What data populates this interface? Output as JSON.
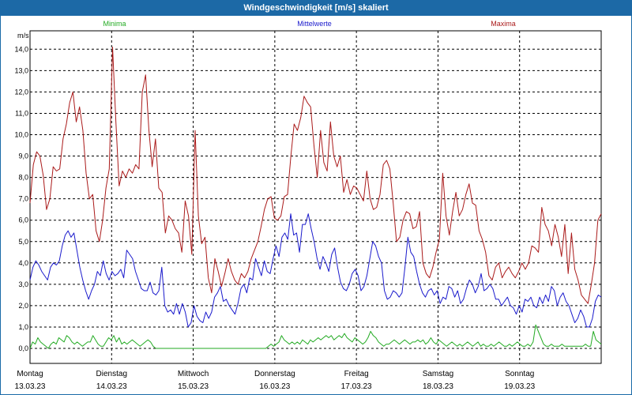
{
  "chart_data": {
    "type": "line",
    "title": "Windgeschwindigkeit [m/s] skaliert",
    "ylabel": "m/s",
    "ylim": [
      0,
      14.7
    ],
    "yticks": [
      "0,0",
      "1,0",
      "2,0",
      "3,0",
      "4,0",
      "5,0",
      "6,0",
      "7,0",
      "8,0",
      "9,0",
      "10,0",
      "11,0",
      "12,0",
      "13,0",
      "14,0"
    ],
    "xlim": [
      0,
      7
    ],
    "day_labels": [
      {
        "day": "Montag",
        "date": "13.03.23"
      },
      {
        "day": "Dienstag",
        "date": "14.03.23"
      },
      {
        "day": "Mittwoch",
        "date": "15.03.23"
      },
      {
        "day": "Donnerstag",
        "date": "16.03.23"
      },
      {
        "day": "Freitag",
        "date": "17.03.23"
      },
      {
        "day": "Samstag",
        "date": "18.03.23"
      },
      {
        "day": "Sonntag",
        "date": "19.03.23"
      }
    ],
    "legend": [
      {
        "name": "Minima",
        "color": "#22aa22"
      },
      {
        "name": "Mittelwerte",
        "color": "#1a1acc"
      },
      {
        "name": "Maxima",
        "color": "#aa1a1a"
      }
    ],
    "series": [
      {
        "name": "Minima",
        "color": "#22aa22",
        "values": [
          0.0,
          0.3,
          0.2,
          0.5,
          0.3,
          0.2,
          0.1,
          0.0,
          0.2,
          0.3,
          0.2,
          0.5,
          0.4,
          0.3,
          0.6,
          0.5,
          0.3,
          0.2,
          0.3,
          0.2,
          0.1,
          0.2,
          0.3,
          0.3,
          0.6,
          0.4,
          0.2,
          0.1,
          0.1,
          0.3,
          0.5,
          0.4,
          0.6,
          0.3,
          0.5,
          0.2,
          0.3,
          0.2,
          0.3,
          0.4,
          0.3,
          0.2,
          0.1,
          0.2,
          0.3,
          0.4,
          0.3,
          0.1,
          0.0,
          0.0,
          0.0,
          0.0,
          0.0,
          0.0,
          0.0,
          0.0,
          0.0,
          0.0,
          0.0,
          0.0,
          0.0,
          0.0,
          0.0,
          0.0,
          0.0,
          0.0,
          0.0,
          0.0,
          0.0,
          0.0,
          0.0,
          0.0,
          0.0,
          0.0,
          0.0,
          0.0,
          0.0,
          0.0,
          0.0,
          0.0,
          0.0,
          0.0,
          0.0,
          0.0,
          0.0,
          0.0,
          0.0,
          0.0,
          0.0,
          0.0,
          0.0,
          0.1,
          0.2,
          0.1,
          0.2,
          0.3,
          0.6,
          0.4,
          0.3,
          0.2,
          0.3,
          0.2,
          0.3,
          0.2,
          0.4,
          0.3,
          0.2,
          0.4,
          0.3,
          0.4,
          0.5,
          0.4,
          0.5,
          0.6,
          0.5,
          0.6,
          0.4,
          0.5,
          0.6,
          0.5,
          0.7,
          0.5,
          0.4,
          0.3,
          0.5,
          0.4,
          0.3,
          0.2,
          0.3,
          0.5,
          0.8,
          0.6,
          0.5,
          0.3,
          0.2,
          0.1,
          0.2,
          0.2,
          0.3,
          0.4,
          0.3,
          0.2,
          0.3,
          0.4,
          0.3,
          0.2,
          0.3,
          0.3,
          0.4,
          0.3,
          0.4,
          0.2,
          0.3,
          0.5,
          0.3,
          0.2,
          0.4,
          0.3,
          0.2,
          0.1,
          0.2,
          0.3,
          0.2,
          0.1,
          0.2,
          0.1,
          0.2,
          0.3,
          0.2,
          0.1,
          0.2,
          0.3,
          0.1,
          0.2,
          0.1,
          0.1,
          0.2,
          0.1,
          0.2,
          0.3,
          0.2,
          0.1,
          0.1,
          0.2,
          0.1,
          0.2,
          0.3,
          0.2,
          0.1,
          0.1,
          0.2,
          0.1,
          0.3,
          1.1,
          0.8,
          0.5,
          0.2,
          0.1,
          0.1,
          0.2,
          0.1,
          0.1,
          0.1,
          0.2,
          0.1,
          0.1,
          0.1,
          0.1,
          0.1,
          0.1,
          0.1,
          0.1,
          0.2,
          0.1,
          0.1,
          0.8,
          0.4,
          0.3,
          0.2
        ]
      },
      {
        "name": "Mittelwerte",
        "color": "#1a1acc",
        "values": [
          3.2,
          3.8,
          4.1,
          3.9,
          3.6,
          3.4,
          3.2,
          3.8,
          4.0,
          3.9,
          4.1,
          4.8,
          5.3,
          5.5,
          5.2,
          5.4,
          4.6,
          3.8,
          3.2,
          2.7,
          2.3,
          2.7,
          3.0,
          3.6,
          3.4,
          4.1,
          3.5,
          3.2,
          3.6,
          3.4,
          3.5,
          3.7,
          3.3,
          4.6,
          4.4,
          4.2,
          3.6,
          3.2,
          2.8,
          2.7,
          2.7,
          3.1,
          2.6,
          2.5,
          2.7,
          3.8,
          2.0,
          1.7,
          1.8,
          1.6,
          2.1,
          1.6,
          2.1,
          1.7,
          1.0,
          1.2,
          2.0,
          1.5,
          1.3,
          1.2,
          1.7,
          1.4,
          1.7,
          2.4,
          2.6,
          2.9,
          2.2,
          2.3,
          2.0,
          1.8,
          1.6,
          2.1,
          2.8,
          3.0,
          2.6,
          3.3,
          3.2,
          4.2,
          3.8,
          3.4,
          4.1,
          3.6,
          3.5,
          4.2,
          4.8,
          4.3,
          5.2,
          5.4,
          5.1,
          6.3,
          5.3,
          5.4,
          4.5,
          5.8,
          5.8,
          6.3,
          5.6,
          5.0,
          4.2,
          3.7,
          4.3,
          4.0,
          3.6,
          4.4,
          4.7,
          3.8,
          3.1,
          2.8,
          2.7,
          3.0,
          3.5,
          3.7,
          3.4,
          2.7,
          2.9,
          3.4,
          4.2,
          5.0,
          4.8,
          4.3,
          4.0,
          2.7,
          2.3,
          2.4,
          2.7,
          2.6,
          2.4,
          2.6,
          3.8,
          5.2,
          4.5,
          4.3,
          3.6,
          3.0,
          2.6,
          2.4,
          2.7,
          2.8,
          2.5,
          2.7,
          2.1,
          2.4,
          2.3,
          2.9,
          2.8,
          2.4,
          2.7,
          2.1,
          2.3,
          2.8,
          3.2,
          3.0,
          2.6,
          2.9,
          3.5,
          2.7,
          2.8,
          3.0,
          2.8,
          2.3,
          2.3,
          2.0,
          2.2,
          2.4,
          2.0,
          1.9,
          1.6,
          2.0,
          1.7,
          2.3,
          2.2,
          2.4,
          2.0,
          1.9,
          2.4,
          2.1,
          2.5,
          2.2,
          2.9,
          2.7,
          2.0,
          2.4,
          2.6,
          2.2,
          2.0,
          1.6,
          1.2,
          1.4,
          1.8,
          1.5,
          1.0,
          1.0,
          1.4,
          2.2,
          2.5,
          2.4
        ]
      },
      {
        "name": "Maxima",
        "color": "#aa1a1a",
        "values": [
          6.8,
          8.6,
          9.2,
          9.0,
          8.1,
          6.5,
          7.0,
          8.5,
          8.3,
          8.4,
          9.8,
          10.5,
          11.5,
          12.0,
          10.6,
          11.3,
          10.2,
          8.2,
          7.0,
          7.2,
          5.5,
          5.0,
          6.0,
          7.5,
          8.4,
          14.1,
          10.6,
          7.6,
          8.3,
          8.0,
          8.4,
          8.2,
          8.6,
          8.4,
          12.0,
          12.8,
          10.2,
          8.5,
          9.8,
          7.5,
          7.3,
          5.4,
          6.2,
          6.0,
          5.6,
          5.4,
          4.5,
          6.9,
          6.2,
          4.4,
          10.2,
          6.2,
          4.9,
          5.2,
          3.3,
          2.6,
          4.2,
          3.6,
          2.9,
          3.5,
          4.2,
          3.6,
          3.2,
          3.0,
          3.5,
          3.3,
          3.6,
          4.2,
          4.6,
          5.0,
          5.7,
          6.5,
          7.0,
          7.1,
          6.1,
          6.0,
          6.2,
          7.1,
          7.2,
          9.0,
          10.5,
          10.2,
          10.8,
          11.8,
          11.5,
          11.3,
          9.5,
          8.0,
          10.2,
          8.7,
          8.3,
          10.6,
          9.0,
          8.5,
          9.0,
          7.3,
          7.9,
          7.2,
          7.6,
          7.5,
          7.2,
          6.9,
          8.3,
          7.0,
          6.5,
          6.6,
          7.2,
          8.6,
          8.8,
          8.4,
          6.8,
          5.0,
          5.2,
          6.0,
          6.4,
          6.3,
          5.6,
          5.7,
          6.4,
          4.0,
          3.5,
          3.3,
          3.8,
          4.5,
          5.1,
          8.2,
          6.2,
          5.3,
          6.4,
          7.3,
          6.2,
          6.5,
          7.2,
          7.7,
          6.8,
          6.7,
          5.5,
          5.1,
          4.5,
          3.4,
          3.2,
          3.8,
          4.0,
          3.3,
          3.6,
          3.8,
          3.5,
          3.3,
          3.6,
          4.0,
          3.7,
          4.0,
          4.8,
          4.7,
          4.5,
          6.6,
          5.8,
          5.5,
          4.8,
          5.8,
          5.2,
          4.3,
          5.8,
          3.5,
          5.4,
          3.7,
          3.2,
          2.5,
          2.3,
          2.1,
          3.0,
          4.0,
          6.0,
          6.3
        ]
      }
    ]
  }
}
